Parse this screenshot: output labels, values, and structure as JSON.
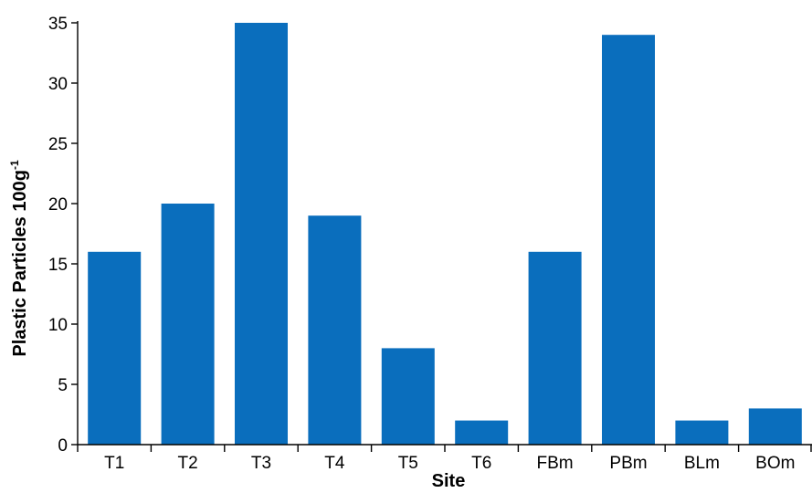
{
  "chart_data": {
    "type": "bar",
    "categories": [
      "T1",
      "T2",
      "T3",
      "T4",
      "T5",
      "T6",
      "FBm",
      "PBm",
      "BLm",
      "BOm"
    ],
    "series": [
      {
        "values": [
          16,
          20,
          35,
          19,
          8,
          2,
          16,
          34,
          2,
          3
        ]
      }
    ],
    "xlabel": "Site",
    "ylabel_main": "Plastic Particles 100g",
    "ylabel_superscript": "-1",
    "ylim": [
      0,
      35
    ],
    "yticks": [
      0,
      5,
      10,
      15,
      20,
      25,
      30,
      35
    ],
    "bar_color": "#0a6ebd",
    "axis_color": "#000000",
    "grid": false,
    "legend": "none"
  }
}
